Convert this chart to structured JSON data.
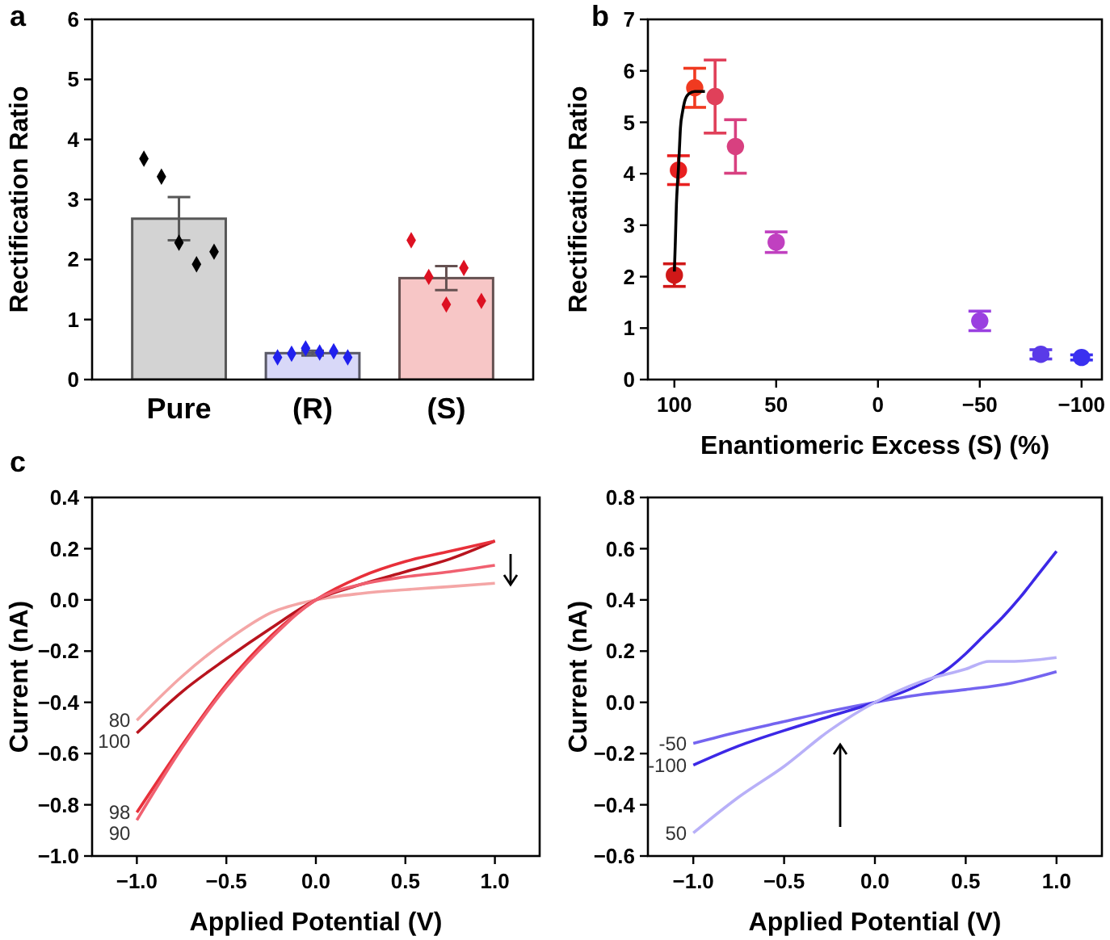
{
  "chart_data": [
    {
      "type": "bar",
      "ylabel": "Rectification Ratio",
      "annotations": [
        "a"
      ],
      "categories": [
        "Pure",
        "(R)",
        "(S)"
      ],
      "ylim": [
        0,
        6
      ],
      "yticks": [
        0,
        1,
        2,
        3,
        4,
        5,
        6
      ],
      "series": [
        {
          "values": [
            2.68,
            0.44,
            1.69
          ],
          "colors": [
            "#d3d3d3",
            "#d8d8f8",
            "#f7c6c6"
          ],
          "errors": [
            0.36,
            0.04,
            0.2
          ]
        },
        {
          "type": "scatter",
          "marker": "diamond",
          "x": [
            "Pure",
            "Pure",
            "Pure",
            "Pure",
            "Pure",
            "(R)",
            "(R)",
            "(R)",
            "(R)",
            "(R)",
            "(R)",
            "(S)",
            "(S)",
            "(S)",
            "(S)",
            "(S)"
          ],
          "values": [
            3.68,
            3.38,
            2.28,
            1.92,
            2.13,
            0.37,
            0.43,
            0.52,
            0.45,
            0.47,
            0.37,
            2.32,
            1.71,
            1.25,
            1.86,
            1.31
          ],
          "colors": [
            "#000000",
            "#000000",
            "#000000",
            "#000000",
            "#000000",
            "#2020ee",
            "#2020ee",
            "#2020ee",
            "#2020ee",
            "#2020ee",
            "#2020ee",
            "#dd1122",
            "#dd1122",
            "#dd1122",
            "#dd1122",
            "#dd1122"
          ]
        }
      ]
    },
    {
      "type": "scatter",
      "ylabel": "Rectification Ratio",
      "xlabel": "Enantiomeric Excess (S) (%)",
      "annotations": [
        "b"
      ],
      "xlim": [
        113,
        -110
      ],
      "xticks": [
        100,
        50,
        0,
        {
          "value": -50,
          "label": "−50"
        },
        {
          "value": -100,
          "label": "−100"
        }
      ],
      "ylim": [
        0,
        7
      ],
      "yticks": [
        0,
        1,
        2,
        3,
        4,
        5,
        6,
        7
      ],
      "series": [
        {
          "marker": "circle",
          "x": [
            100,
            98,
            90,
            80,
            70,
            50,
            -50,
            -80,
            -100
          ],
          "values": [
            2.03,
            4.07,
            5.67,
            5.5,
            4.53,
            2.67,
            1.14,
            0.49,
            0.43
          ],
          "errors": [
            0.22,
            0.28,
            0.38,
            0.71,
            0.52,
            0.2,
            0.19,
            0.09,
            0.05
          ],
          "colors": [
            "#d01818",
            "#e82020",
            "#f03a20",
            "#e0405a",
            "#d84080",
            "#c040c0",
            "#9a40e0",
            "#5a3ae8",
            "#3a30f0"
          ]
        },
        {
          "type": "line",
          "color": "#000000",
          "x": [
            100,
            99.5,
            99,
            98.5,
            98,
            97.5,
            97,
            96,
            95,
            93,
            90,
            85
          ],
          "values": [
            2.1,
            2.7,
            3.4,
            3.8,
            4.1,
            4.5,
            4.9,
            5.2,
            5.4,
            5.55,
            5.6,
            5.6
          ]
        }
      ]
    },
    {
      "type": "line",
      "ylabel": "Current (nA)",
      "xlabel": "Applied Potential (V)",
      "annotations": [
        "c"
      ],
      "xlim": [
        -1.25,
        1.25
      ],
      "xticks": [
        {
          "value": -1,
          "label": "−1.0"
        },
        {
          "value": -0.5,
          "label": "−0.5"
        },
        {
          "value": 0,
          "label": "0.0"
        },
        {
          "value": 0.5,
          "label": "0.5"
        },
        {
          "value": 1,
          "label": "1.0"
        }
      ],
      "ylim": [
        -1,
        0.4
      ],
      "yticks": [
        {
          "value": -1,
          "label": "−1.0"
        },
        {
          "value": -0.8,
          "label": "−0.8"
        },
        {
          "value": -0.6,
          "label": "−0.6"
        },
        {
          "value": -0.4,
          "label": "−0.4"
        },
        {
          "value": -0.2,
          "label": "−0.2"
        },
        {
          "value": 0,
          "label": "0.0"
        },
        {
          "value": 0.2,
          "label": "0.2"
        },
        {
          "value": 0.4,
          "label": "0.4"
        }
      ],
      "series": [
        {
          "name": "80",
          "color": "#f4a6a6",
          "x": [
            -1,
            -0.75,
            -0.5,
            -0.25,
            0,
            0.25,
            0.5,
            0.75,
            1
          ],
          "values": [
            -0.47,
            -0.3,
            -0.16,
            -0.05,
            0,
            0.025,
            0.04,
            0.052,
            0.065
          ]
        },
        {
          "name": "100",
          "color": "#b8141e",
          "x": [
            -1,
            -0.75,
            -0.5,
            -0.25,
            0,
            0.25,
            0.5,
            0.75,
            1
          ],
          "values": [
            -0.52,
            -0.36,
            -0.23,
            -0.11,
            0,
            0.06,
            0.11,
            0.16,
            0.23
          ]
        },
        {
          "name": "98",
          "color": "#e8303a",
          "x": [
            -1,
            -0.75,
            -0.5,
            -0.25,
            0,
            0.25,
            0.5,
            0.75,
            1
          ],
          "values": [
            -0.83,
            -0.57,
            -0.33,
            -0.14,
            0,
            0.09,
            0.15,
            0.19,
            0.23
          ]
        },
        {
          "name": "90",
          "color": "#f06070",
          "x": [
            -1,
            -0.75,
            -0.5,
            -0.25,
            0,
            0.25,
            0.5,
            0.75,
            1
          ],
          "values": [
            -0.86,
            -0.58,
            -0.34,
            -0.15,
            0,
            0.06,
            0.09,
            0.11,
            0.135
          ]
        }
      ]
    },
    {
      "type": "line",
      "ylabel": "Current (nA)",
      "xlabel": "Applied Potential (V)",
      "xlim": [
        -1.25,
        1.25
      ],
      "xticks": [
        {
          "value": -1,
          "label": "−1.0"
        },
        {
          "value": -0.5,
          "label": "−0.5"
        },
        {
          "value": 0,
          "label": "0.0"
        },
        {
          "value": 0.5,
          "label": "0.5"
        },
        {
          "value": 1,
          "label": "1.0"
        }
      ],
      "ylim": [
        -0.6,
        0.8
      ],
      "yticks": [
        {
          "value": -0.6,
          "label": "−0.6"
        },
        {
          "value": -0.4,
          "label": "−0.4"
        },
        {
          "value": -0.2,
          "label": "−0.2"
        },
        {
          "value": 0,
          "label": "0.0"
        },
        {
          "value": 0.2,
          "label": "0.2"
        },
        {
          "value": 0.4,
          "label": "0.4"
        },
        {
          "value": 0.6,
          "label": "0.6"
        },
        {
          "value": 0.8,
          "label": "0.8"
        }
      ],
      "series": [
        {
          "name": "-50",
          "color": "#7464f0",
          "x": [
            -1,
            -0.75,
            -0.5,
            -0.25,
            0,
            0.25,
            0.5,
            0.75,
            1
          ],
          "values": [
            -0.16,
            -0.115,
            -0.075,
            -0.035,
            0,
            0.03,
            0.05,
            0.075,
            0.12
          ]
        },
        {
          "name": "-100",
          "color": "#3c28e6",
          "x": [
            -1,
            -0.75,
            -0.5,
            -0.25,
            0,
            0.25,
            0.4,
            0.5,
            0.6,
            0.7,
            0.8,
            0.9,
            1
          ],
          "values": [
            -0.245,
            -0.17,
            -0.11,
            -0.055,
            0,
            0.07,
            0.13,
            0.19,
            0.26,
            0.33,
            0.41,
            0.5,
            0.59
          ]
        },
        {
          "name": "50",
          "color": "#b8b0f8",
          "x": [
            -1,
            -0.75,
            -0.5,
            -0.25,
            0,
            0.25,
            0.5,
            0.63,
            0.75,
            1
          ],
          "values": [
            -0.51,
            -0.37,
            -0.25,
            -0.11,
            0,
            0.08,
            0.13,
            0.16,
            0.16,
            0.175
          ]
        }
      ]
    }
  ]
}
